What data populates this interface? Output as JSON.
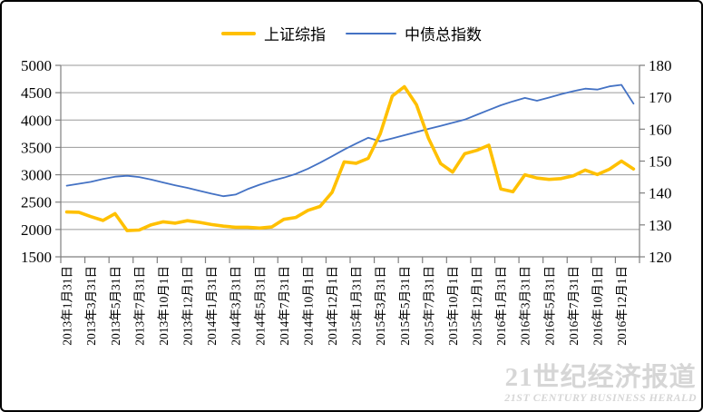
{
  "legend": [
    {
      "label": "上证综指",
      "color": "#FFC000",
      "sample_w": 38,
      "sample_h": 4
    },
    {
      "label": "中债总指数",
      "color": "#4472C4",
      "sample_w": 56,
      "sample_h": 2
    }
  ],
  "watermark": {
    "line1": "21世纪经济报道",
    "line2": "21ST CENTURY BUSINESS HERALD"
  },
  "chart_data": {
    "type": "line",
    "title": "",
    "x_tick_labels": [
      "2013年1月31日",
      "2013年3月31日",
      "2013年5月31日",
      "2013年7月31日",
      "2013年10月1日",
      "2013年12月1日",
      "2014年1月31日",
      "2014年3月31日",
      "2014年5月31日",
      "2014年7月31日",
      "2014年10月1日",
      "2014年12月1日",
      "2015年1月31日",
      "2015年3月31日",
      "2015年5月31日",
      "2015年7月31日",
      "2015年10月1日",
      "2015年12月1日",
      "2016年1月31日",
      "2016年3月31日",
      "2016年5月31日",
      "2016年7月31日",
      "2016年10月1日",
      "2016年12月1日"
    ],
    "points_per_series": 48,
    "label_every_n_points": 2,
    "left_axis": {
      "min": 1500,
      "max": 5000,
      "step": 500,
      "ticks": [
        5000,
        4500,
        4000,
        3500,
        3000,
        2500,
        2000,
        1500
      ]
    },
    "right_axis": {
      "min": 120,
      "max": 180,
      "step": 10,
      "ticks": [
        180,
        170,
        160,
        150,
        140,
        130,
        120
      ]
    },
    "grid": true,
    "legend_position": "top",
    "grid_color": "#9a9a9a",
    "axis_color": "#7f7f7f",
    "series": [
      {
        "id": "chinabond-total-index-line",
        "name": "中债总指数",
        "axis": "right",
        "color": "#4472C4",
        "width": 1.8,
        "values": [
          142.3,
          142.9,
          143.5,
          144.4,
          145.1,
          145.4,
          145.0,
          144.2,
          143.3,
          142.4,
          141.6,
          140.7,
          139.8,
          139.0,
          139.5,
          141.2,
          142.6,
          143.8,
          144.8,
          146.0,
          147.6,
          149.5,
          151.5,
          153.6,
          155.5,
          157.3,
          156.2,
          157.1,
          158.1,
          159.1,
          160.1,
          161.0,
          162.0,
          163.0,
          164.5,
          166.0,
          167.5,
          168.7,
          169.8,
          168.9,
          169.9,
          171.0,
          171.9,
          172.7,
          172.4,
          173.4,
          173.9,
          168.0
        ]
      },
      {
        "id": "sse-composite-line",
        "name": "上证综指",
        "axis": "left",
        "color": "#FFC000",
        "width": 3.6,
        "values": [
          2320,
          2315,
          2235,
          2165,
          2290,
          1980,
          1990,
          2085,
          2140,
          2115,
          2160,
          2130,
          2090,
          2060,
          2040,
          2040,
          2025,
          2045,
          2185,
          2220,
          2350,
          2420,
          2680,
          3235,
          3210,
          3300,
          3750,
          4440,
          4610,
          4280,
          3665,
          3205,
          3050,
          3385,
          3445,
          3540,
          2740,
          2690,
          3000,
          2940,
          2915,
          2930,
          2980,
          3085,
          3005,
          3100,
          3250,
          3105
        ]
      }
    ]
  }
}
